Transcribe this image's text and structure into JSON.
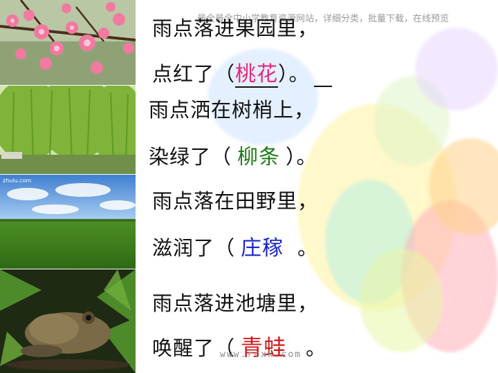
{
  "watermark_top": "最全最全中小学教育资源网站，详细分类，批量下载，在线预览",
  "watermark_bottom": "www.rcxk.com",
  "photo_caption": "zhulu.com",
  "verses": [
    {
      "line1": "雨点落进果园里，",
      "prefix": "点红了（",
      "answer": "桃花",
      "suffix": "）。",
      "answer_color": "#e8287a"
    },
    {
      "line1": "雨点洒在树梢上，",
      "prefix": "染绿了（",
      "answer": "柳条",
      "suffix": "）。",
      "answer_color": "#1e7a18"
    },
    {
      "line1": "雨点落在田野里，",
      "prefix": "滋润了（",
      "answer": "庄稼",
      "suffix": "。",
      "answer_color": "#1a24c8"
    },
    {
      "line1": "雨点落进池塘里，",
      "prefix": "唤醒了（",
      "answer": "青蛙",
      "suffix": "。",
      "answer_color": "#d01818"
    }
  ]
}
